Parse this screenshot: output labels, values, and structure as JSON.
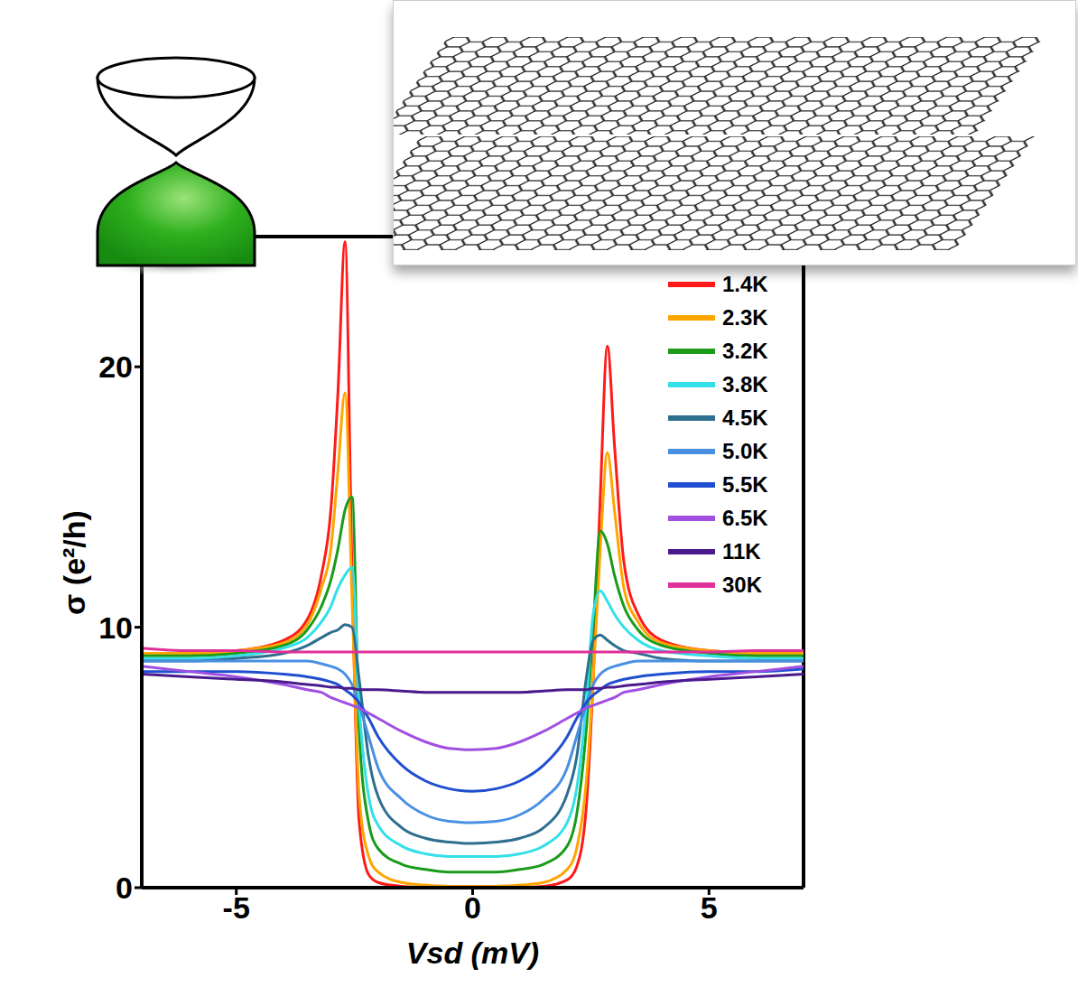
{
  "chart_data": {
    "type": "line",
    "x_label": "Vsd (mV)",
    "y_label": "σ (e²/h)",
    "x": [
      -7,
      -6,
      -5,
      -4,
      -3.5,
      -3.2,
      -3,
      -2.85,
      -2.7,
      -2.55,
      -2.4,
      -2.2,
      -2,
      -1.5,
      -1,
      -0.5,
      0,
      0.5,
      1,
      1.5,
      2,
      2.2,
      2.4,
      2.55,
      2.7,
      2.85,
      3,
      3.2,
      3.5,
      4,
      5,
      6,
      7
    ],
    "series": [
      {
        "name": "1.4K",
        "color": "#ff1a1a",
        "values": [
          9.0,
          9.0,
          9.1,
          9.5,
          10.3,
          12.0,
          14.5,
          19.0,
          24.8,
          12.0,
          2.5,
          0.5,
          0.2,
          0.05,
          0,
          0,
          0,
          0,
          0,
          0.05,
          0.3,
          0.8,
          3.0,
          8.0,
          15.0,
          20.8,
          17.0,
          12.5,
          10.5,
          9.5,
          9.1,
          9.0,
          9.0
        ]
      },
      {
        "name": "2.3K",
        "color": "#ffa500",
        "values": [
          9.0,
          9.0,
          9.1,
          9.4,
          10.1,
          11.5,
          13.0,
          16.0,
          19.0,
          11.0,
          3.5,
          1.2,
          0.6,
          0.2,
          0.1,
          0.05,
          0.05,
          0.05,
          0.1,
          0.2,
          0.7,
          1.5,
          4.0,
          8.0,
          13.0,
          16.7,
          14.5,
          11.5,
          10.2,
          9.4,
          9.1,
          9.0,
          9.0
        ]
      },
      {
        "name": "3.2K",
        "color": "#1a9b1a",
        "values": [
          8.9,
          8.9,
          9.0,
          9.3,
          9.9,
          10.8,
          11.8,
          13.0,
          14.5,
          15.0,
          6.0,
          2.5,
          1.5,
          0.9,
          0.7,
          0.6,
          0.6,
          0.6,
          0.7,
          0.9,
          1.6,
          2.8,
          6.0,
          10.0,
          13.7,
          13.2,
          12.0,
          10.8,
          9.9,
          9.3,
          9.0,
          8.9,
          8.9
        ]
      },
      {
        "name": "3.8K",
        "color": "#33e0e8",
        "values": [
          8.8,
          8.8,
          8.9,
          9.2,
          9.6,
          10.2,
          10.8,
          11.5,
          12.0,
          12.3,
          7.0,
          3.5,
          2.4,
          1.6,
          1.3,
          1.2,
          1.2,
          1.2,
          1.3,
          1.6,
          2.5,
          3.8,
          7.0,
          10.5,
          11.4,
          11.0,
          10.5,
          10.0,
          9.5,
          9.1,
          8.9,
          8.8,
          8.8
        ]
      },
      {
        "name": "4.5K",
        "color": "#2e6f8f",
        "values": [
          8.7,
          8.7,
          8.8,
          9.0,
          9.3,
          9.6,
          9.8,
          9.9,
          10.1,
          10.0,
          8.0,
          5.0,
          3.5,
          2.3,
          1.9,
          1.75,
          1.7,
          1.75,
          1.9,
          2.3,
          3.6,
          5.0,
          8.0,
          9.5,
          9.7,
          9.5,
          9.3,
          9.1,
          9.0,
          8.8,
          8.7,
          8.7,
          8.7
        ]
      },
      {
        "name": "5.0K",
        "color": "#4a90e2",
        "values": [
          8.7,
          8.7,
          8.7,
          8.7,
          8.7,
          8.6,
          8.5,
          8.4,
          8.2,
          7.8,
          7.0,
          5.8,
          4.6,
          3.4,
          2.8,
          2.55,
          2.5,
          2.55,
          2.8,
          3.4,
          4.6,
          5.8,
          7.0,
          7.8,
          8.2,
          8.4,
          8.5,
          8.6,
          8.7,
          8.7,
          8.7,
          8.7,
          8.7
        ]
      },
      {
        "name": "5.5K",
        "color": "#1f4fd0",
        "values": [
          8.3,
          8.3,
          8.3,
          8.2,
          8.1,
          8.0,
          7.9,
          7.8,
          7.6,
          7.4,
          7.1,
          6.5,
          5.8,
          4.7,
          4.1,
          3.8,
          3.7,
          3.8,
          4.1,
          4.7,
          5.8,
          6.5,
          7.1,
          7.4,
          7.6,
          7.8,
          7.9,
          8.0,
          8.1,
          8.2,
          8.3,
          8.3,
          8.4
        ]
      },
      {
        "name": "6.5K",
        "color": "#a050e0",
        "values": [
          8.5,
          8.3,
          8.1,
          7.8,
          7.6,
          7.5,
          7.3,
          7.2,
          7.1,
          7.0,
          6.9,
          6.7,
          6.5,
          6.0,
          5.6,
          5.35,
          5.3,
          5.35,
          5.6,
          6.0,
          6.5,
          6.7,
          6.9,
          7.0,
          7.1,
          7.2,
          7.3,
          7.5,
          7.6,
          7.8,
          8.1,
          8.3,
          8.5
        ]
      },
      {
        "name": "11K",
        "color": "#4a1a8c",
        "values": [
          8.2,
          8.1,
          8.0,
          7.9,
          7.8,
          7.75,
          7.7,
          7.7,
          7.65,
          7.65,
          7.6,
          7.6,
          7.6,
          7.55,
          7.5,
          7.5,
          7.5,
          7.5,
          7.5,
          7.55,
          7.6,
          7.6,
          7.6,
          7.65,
          7.65,
          7.7,
          7.7,
          7.75,
          7.8,
          7.9,
          8.0,
          8.1,
          8.2
        ]
      },
      {
        "name": "30K",
        "color": "#e0309a",
        "values": [
          9.2,
          9.1,
          9.1,
          9.05,
          9.05,
          9.05,
          9.05,
          9.05,
          9.05,
          9.05,
          9.05,
          9.05,
          9.05,
          9.05,
          9.05,
          9.05,
          9.05,
          9.05,
          9.05,
          9.05,
          9.05,
          9.05,
          9.05,
          9.05,
          9.05,
          9.05,
          9.05,
          9.05,
          9.05,
          9.05,
          9.05,
          9.1,
          9.1
        ]
      }
    ],
    "xlim": [
      -7,
      7
    ],
    "xticks": [
      -5,
      0,
      5
    ],
    "ylim": [
      0,
      25
    ],
    "yticks": [
      0,
      10,
      20
    ],
    "legend": "upper right"
  }
}
